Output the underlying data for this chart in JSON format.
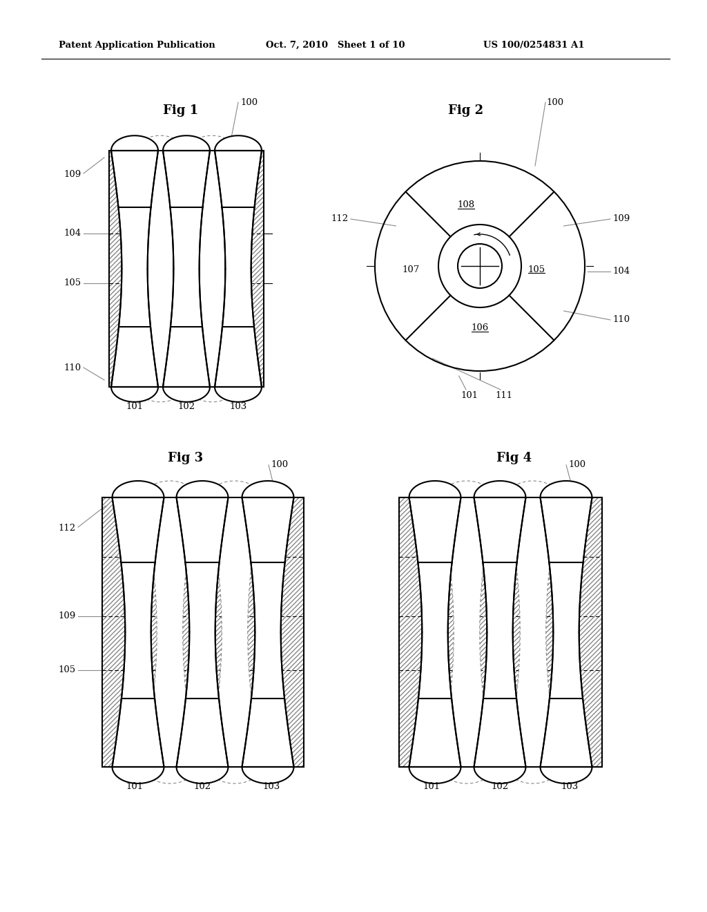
{
  "header_left": "Patent Application Publication",
  "header_mid": "Oct. 7, 2010   Sheet 1 of 10",
  "header_right": "US 100/0254831 A1",
  "bg_color": "#ffffff",
  "line_color": "#000000",
  "fig1_title": "Fig 1",
  "fig2_title": "Fig 2",
  "fig3_title": "Fig 3",
  "fig4_title": "Fig 4"
}
